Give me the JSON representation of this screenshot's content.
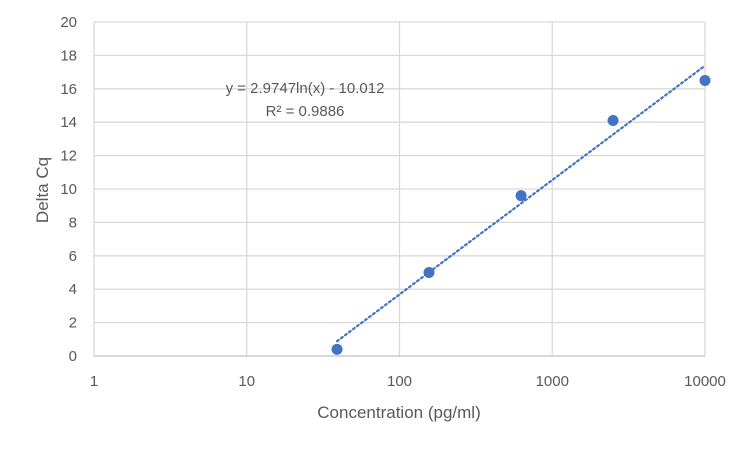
{
  "chart_data": {
    "type": "scatter",
    "title": "",
    "xlabel": "Concentration (pg/ml)",
    "ylabel": "Delta Cq",
    "x_scale": "log",
    "xlim": [
      1,
      10000
    ],
    "ylim": [
      0,
      20
    ],
    "x_ticks": [
      1,
      10,
      100,
      1000,
      10000
    ],
    "x_tick_labels": [
      "1",
      "10",
      "100",
      "1000",
      "10000"
    ],
    "y_ticks": [
      0,
      2,
      4,
      6,
      8,
      10,
      12,
      14,
      16,
      18,
      20
    ],
    "y_tick_labels": [
      "0",
      "2",
      "4",
      "6",
      "8",
      "10",
      "12",
      "14",
      "16",
      "18",
      "20"
    ],
    "grid": true,
    "legend": "none",
    "marker_color": "#4472C4",
    "trendline_color": "#4472C4",
    "gridline_color": "#D9D9D9",
    "series": [
      {
        "x": [
          39,
          156,
          625,
          2500,
          10000
        ],
        "y": [
          0.4,
          5.0,
          9.6,
          14.1,
          16.5
        ]
      }
    ],
    "trendline": {
      "type": "logarithmic",
      "style": "dotted",
      "a": 2.9747,
      "b": -10.012,
      "x_range": [
        39,
        10000
      ],
      "equation_label": "y = 2.9747ln(x) - 10.012",
      "r2_label": "R² = 0.9886"
    }
  }
}
